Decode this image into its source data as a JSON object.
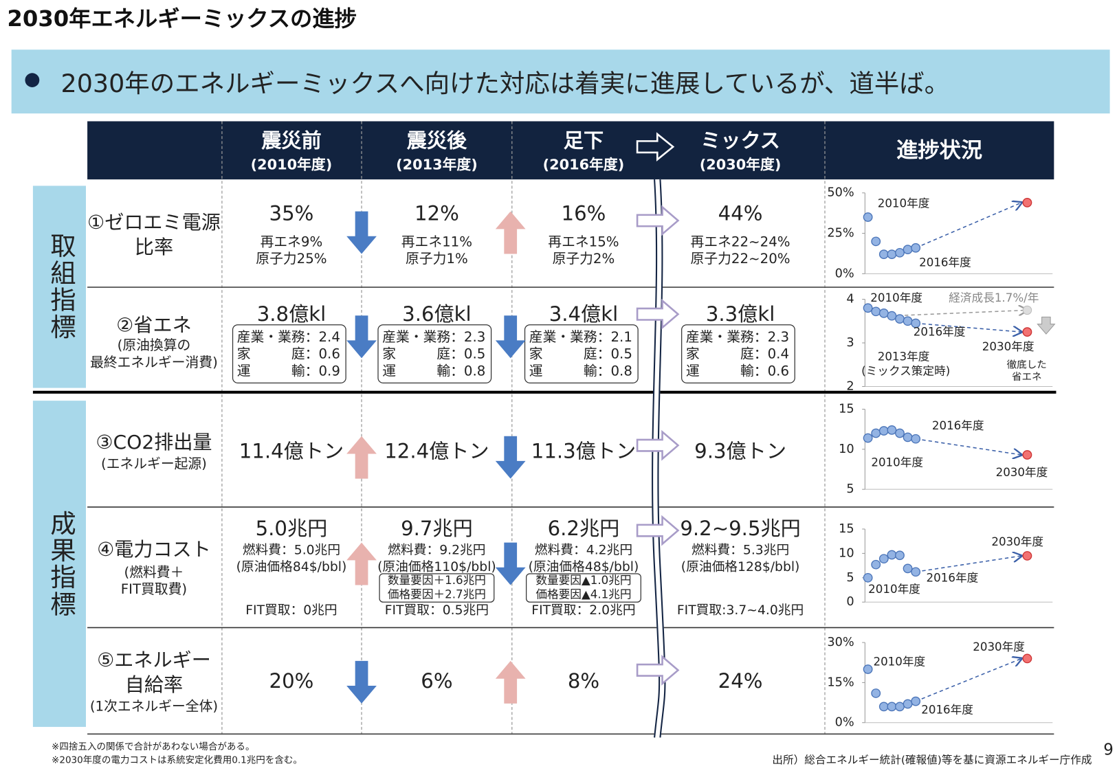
{
  "header": {
    "title": "2030年エネルギーミックスの進捗",
    "banner": "2030年のエネルギーミックスへ向けた対応は着実に進展しているが、道半ば。"
  },
  "table": {
    "columns": [
      {
        "main": "震災前",
        "sub": "(2010年度)"
      },
      {
        "main": "震災後",
        "sub": "(2013年度)"
      },
      {
        "main": "足下",
        "sub": "(2016年度)"
      },
      {
        "main": "ミックス",
        "sub": "(2030年度)"
      }
    ],
    "progress_header": "進捗状況",
    "groups": [
      "取組指標",
      "成果指標"
    ],
    "rows": [
      {
        "label": [
          "①ゼロエミ電源",
          "比率"
        ],
        "arrows": [
          "down",
          "up"
        ],
        "cells": [
          {
            "value": "35%",
            "notes": [
              "再エネ9%",
              "原子力25%"
            ]
          },
          {
            "value": "12%",
            "notes": [
              "再エネ11%",
              "原子力1%"
            ]
          },
          {
            "value": "16%",
            "notes": [
              "再エネ15%",
              "原子力2%"
            ]
          },
          {
            "value": "44%",
            "notes": [
              "再エネ22~24%",
              "原子力22~20%"
            ]
          }
        ]
      },
      {
        "label": [
          "②省エネ",
          "(原油換算の",
          "最終エネルギー消費)"
        ],
        "arrows": [
          "down",
          "down"
        ],
        "cells": [
          {
            "value": "3.8億kl",
            "breakdown": [
              "産業・業務：2.4",
              "家　　　庭：0.6",
              "運　　　輸：0.9"
            ]
          },
          {
            "value": "3.6億kl",
            "breakdown": [
              "産業・業務：2.3",
              "家　　　庭：0.5",
              "運　　　輸：0.8"
            ]
          },
          {
            "value": "3.4億kl",
            "breakdown": [
              "産業・業務：2.1",
              "家　　　庭：0.5",
              "運　　　輸：0.8"
            ]
          },
          {
            "value": "3.3億kl",
            "breakdown": [
              "産業・業務：2.3",
              "家　　　庭：0.4",
              "運　　　輸：0.6"
            ]
          }
        ]
      },
      {
        "label": [
          "③CO2排出量",
          "(エネルギー起源)"
        ],
        "arrows": [
          "up",
          "down"
        ],
        "cells": [
          {
            "value": "11.4億トン"
          },
          {
            "value": "12.4億トン"
          },
          {
            "value": "11.3億トン"
          },
          {
            "value": "9.3億トン"
          }
        ]
      },
      {
        "label": [
          "④電力コスト",
          "(燃料費＋",
          "FIT買取費)"
        ],
        "arrows": [
          "up",
          "down"
        ],
        "cells": [
          {
            "value": "5.0兆円",
            "notes": [
              "燃料費：5.0兆円",
              "(原油価格84$/bbl)"
            ],
            "fit": "FIT買取：0兆円"
          },
          {
            "value": "9.7兆円",
            "notes": [
              "燃料費：9.2兆円",
              "(原油価格110$/bbl)"
            ],
            "factors": [
              "数量要因＋1.6兆円",
              "価格要因＋2.7兆円"
            ],
            "fit": "FIT買取：0.5兆円"
          },
          {
            "value": "6.2兆円",
            "notes": [
              "燃料費：4.2兆円",
              "(原油価格48$/bbl)"
            ],
            "factors": [
              "数量要因▲1.0兆円",
              "価格要因▲4.1兆円"
            ],
            "fit": "FIT買取：2.0兆円"
          },
          {
            "value": "9.2~9.5兆円",
            "notes": [
              "燃料費：5.3兆円",
              "(原油価格128$/bbl)"
            ],
            "fit": "FIT買取:3.7~4.0兆円"
          }
        ]
      },
      {
        "label": [
          "⑤エネルギー",
          "自給率",
          "(1次エネルギー全体)"
        ],
        "arrows": [
          "down",
          "up"
        ],
        "cells": [
          {
            "value": "20%"
          },
          {
            "value": "6%"
          },
          {
            "value": "8%"
          },
          {
            "value": "24%"
          }
        ]
      }
    ]
  },
  "progress_charts": [
    {
      "type": "scatter",
      "x": [
        2010,
        2011,
        2012,
        2013,
        2014,
        2015,
        2016,
        2030
      ],
      "values": [
        35,
        20,
        12,
        12,
        13,
        15,
        16,
        44
      ],
      "xlim": [
        2009,
        2033
      ],
      "ylim": [
        0,
        50
      ],
      "yticks": [
        {
          "value": 0,
          "label": "0%"
        },
        {
          "value": 25,
          "label": "25%"
        },
        {
          "value": 50,
          "label": "50%"
        }
      ],
      "labels": [
        "2010年度",
        "2016年度"
      ]
    },
    {
      "type": "scatter",
      "x": [
        2010,
        2011,
        2012,
        2013,
        2014,
        2015,
        2016,
        2030
      ],
      "values": [
        3.8,
        3.72,
        3.68,
        3.62,
        3.55,
        3.5,
        3.45,
        3.25
      ],
      "reference": 3.75,
      "xlim": [
        2009,
        2033
      ],
      "ylim": [
        2,
        4
      ],
      "yticks": [
        2,
        3,
        4
      ],
      "labels": [
        "2010年度",
        "経済成長1.7%/年",
        "2016年度",
        "2030年度",
        "2013年度",
        "(ミックス策定時)",
        "徹底した",
        "省エネ"
      ]
    },
    {
      "type": "scatter",
      "x": [
        2010,
        2011,
        2012,
        2013,
        2014,
        2015,
        2016,
        2030
      ],
      "values": [
        11.4,
        12.0,
        12.3,
        12.4,
        12.0,
        11.5,
        11.3,
        9.3
      ],
      "xlim": [
        2009,
        2033
      ],
      "ylim": [
        5,
        15
      ],
      "yticks": [
        5,
        10,
        15
      ],
      "labels": [
        "2016年度",
        "2010年度",
        "2030年度"
      ]
    },
    {
      "type": "scatter",
      "x": [
        2010,
        2011,
        2012,
        2013,
        2014,
        2015,
        2016,
        2030
      ],
      "values": [
        5.0,
        7.7,
        8.9,
        9.7,
        9.6,
        6.9,
        6.2,
        9.5
      ],
      "xlim": [
        2009,
        2033
      ],
      "ylim": [
        0,
        15
      ],
      "yticks": [
        0,
        5,
        10,
        15
      ],
      "labels": [
        "2030年度",
        "2016年度",
        "2010年度"
      ]
    },
    {
      "type": "scatter",
      "x": [
        2010,
        2011,
        2012,
        2013,
        2014,
        2015,
        2016,
        2030
      ],
      "values": [
        20,
        11,
        6,
        6,
        6,
        7,
        8,
        24
      ],
      "xlim": [
        2009,
        2033
      ],
      "ylim": [
        0,
        30
      ],
      "yticks": [
        {
          "value": 0,
          "label": "0%"
        },
        {
          "value": 15,
          "label": "15%"
        },
        {
          "value": 30,
          "label": "30%"
        }
      ],
      "labels": [
        "2030年度",
        "2010年度",
        "2016年度"
      ]
    }
  ],
  "footnotes": [
    "※四捨五入の関係で合計があわない場合がある。",
    "※2030年度の電力コストは系統安定化費用0.1兆円を含む。"
  ],
  "source": "出所）総合エネルギー統計(確報値)等を基に資源エネルギー庁作成",
  "page": "9"
}
